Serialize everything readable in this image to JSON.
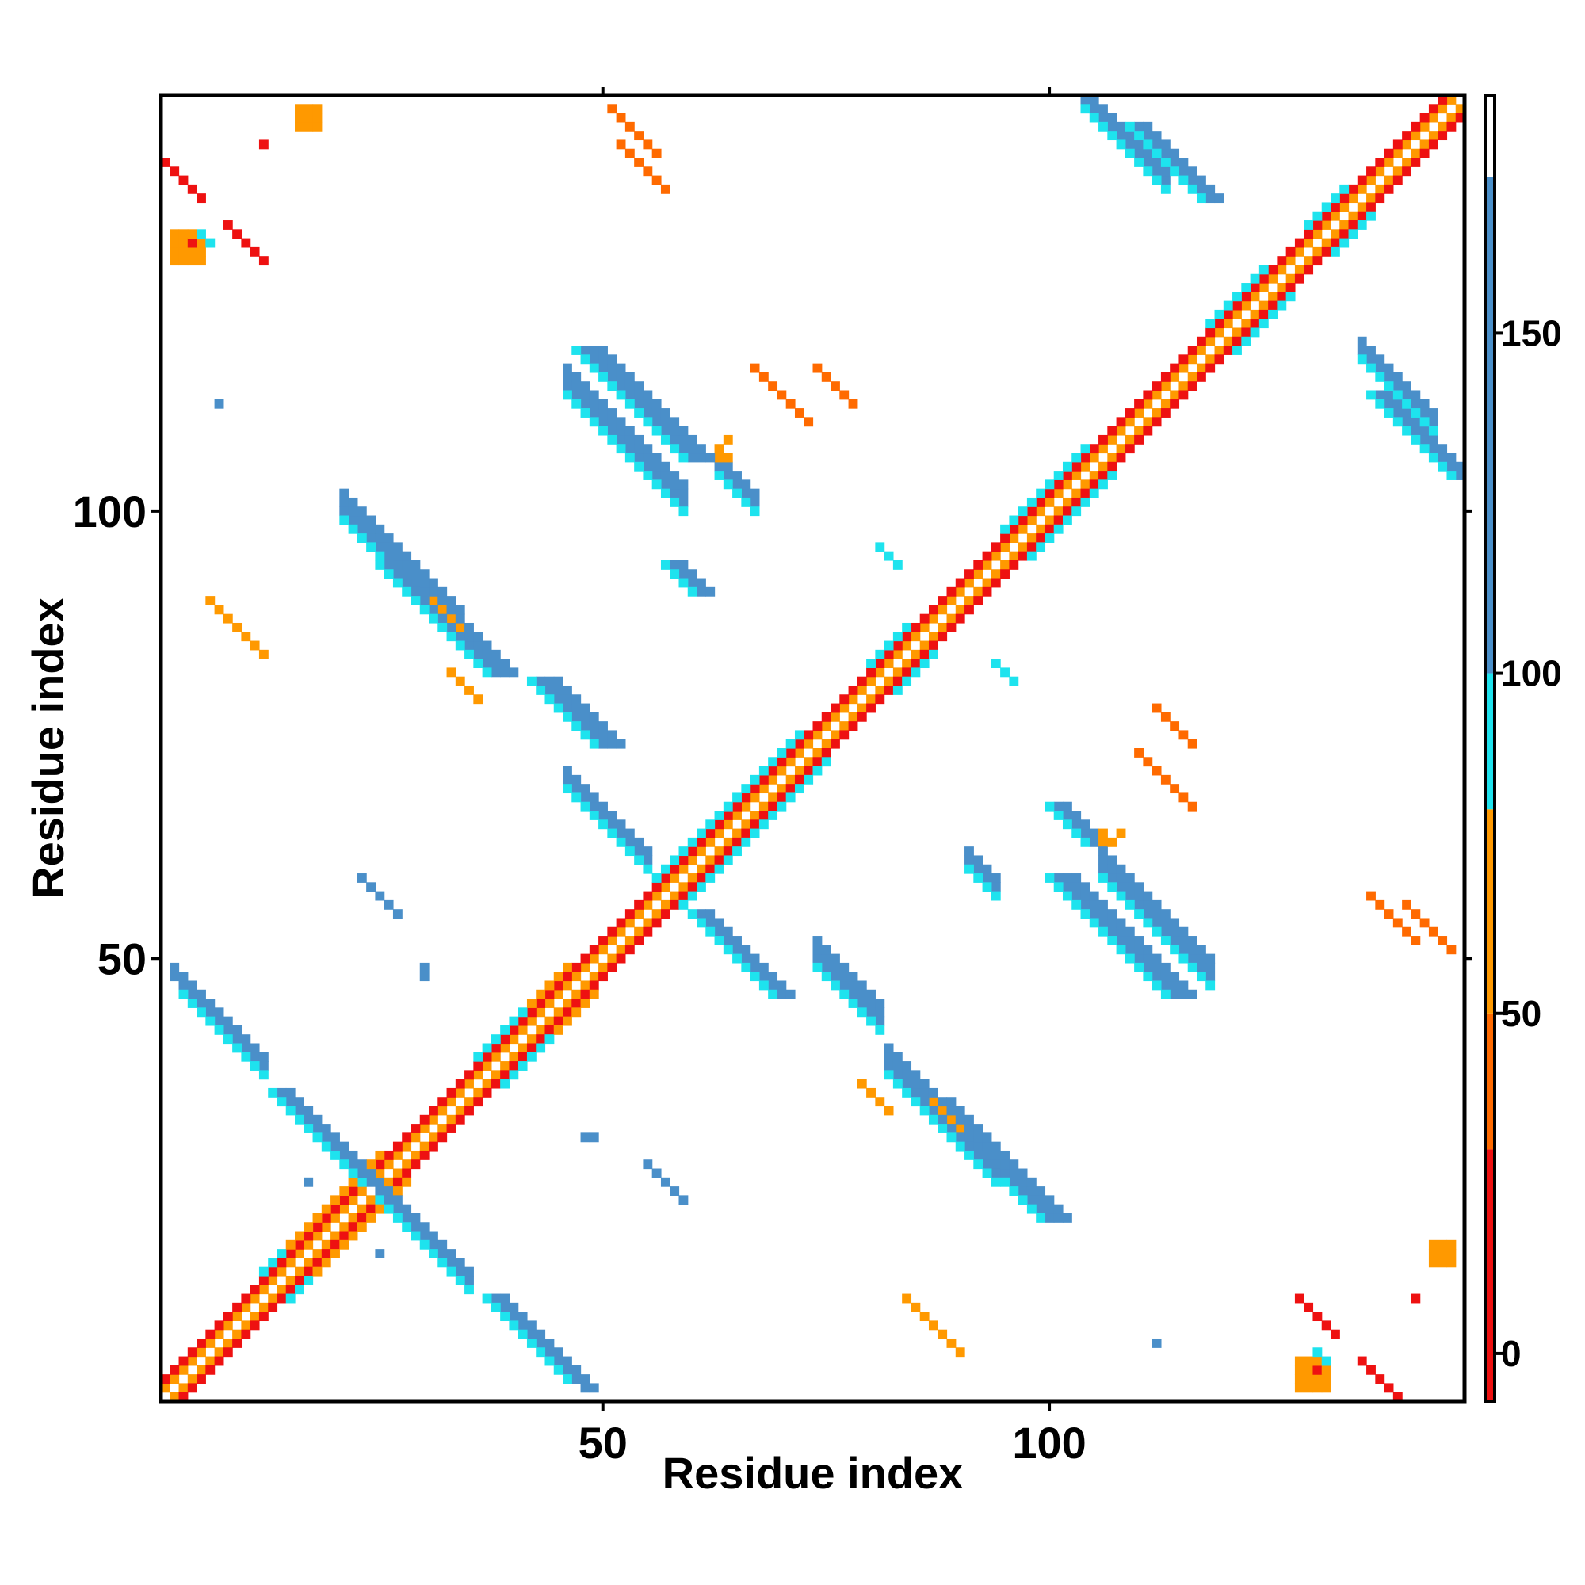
{
  "chart_data": {
    "type": "heatmap",
    "title": "",
    "xlabel": "Residue index",
    "ylabel": "Residue index",
    "xlim": [
      1,
      146
    ],
    "ylim": [
      1,
      146
    ],
    "x_ticks": [
      50,
      100
    ],
    "y_ticks": [
      50,
      100
    ],
    "grid": false,
    "legend": "colorbar-right",
    "colorbar": {
      "range": [
        -7,
        185
      ],
      "ticks": [
        0,
        50,
        100,
        150
      ],
      "bins": [
        {
          "from": -7,
          "to": 30,
          "color": "#ee1111"
        },
        {
          "from": 30,
          "to": 50,
          "color": "#ff6a00"
        },
        {
          "from": 50,
          "to": 80,
          "color": "#ff9900"
        },
        {
          "from": 80,
          "to": 100,
          "color": "#1ee3ee"
        },
        {
          "from": 100,
          "to": 173,
          "color": "#4a8fc9"
        },
        {
          "from": 173,
          "to": 185,
          "color": "#ffffff"
        }
      ]
    },
    "cell_groups": [
      {
        "kind": "diag",
        "i0": 1,
        "i1": 146,
        "off": 0,
        "value": 182
      },
      {
        "kind": "diag",
        "i0": 1,
        "i1": 145,
        "off": 1,
        "value": 55
      },
      {
        "kind": "diag",
        "i0": 1,
        "i1": 144,
        "off": 2,
        "value": 10
      },
      {
        "kind": "diag",
        "i0": 12,
        "i1": 19,
        "off": 3,
        "value": 90
      },
      {
        "kind": "diag",
        "i0": 15,
        "i1": 25,
        "off": 3,
        "value": 60
      },
      {
        "kind": "diag",
        "i0": 36,
        "i1": 44,
        "off": 3,
        "value": 90
      },
      {
        "kind": "diag",
        "i0": 42,
        "i1": 46,
        "off": 3,
        "value": 60
      },
      {
        "kind": "diag",
        "i0": 56,
        "i1": 62,
        "off": 3,
        "value": 90
      },
      {
        "kind": "diag",
        "i0": 62,
        "i1": 72,
        "off": 3,
        "value": 90
      },
      {
        "kind": "diag",
        "i0": 80,
        "i1": 84,
        "off": 3,
        "value": 90
      },
      {
        "kind": "diag",
        "i0": 95,
        "i1": 104,
        "off": 3,
        "value": 90
      },
      {
        "kind": "diag",
        "i0": 118,
        "i1": 124,
        "off": 3,
        "value": 90
      },
      {
        "kind": "diag",
        "i0": 129,
        "i1": 133,
        "off": 3,
        "value": 90
      },
      {
        "kind": "anti",
        "sum": 50,
        "i0": 2,
        "i1": 12,
        "width": 2,
        "value": 140
      },
      {
        "kind": "anti",
        "sum": 49,
        "i0": 3,
        "i1": 12,
        "width": 1,
        "value": 92
      },
      {
        "kind": "anti",
        "sum": 49,
        "i0": 25,
        "i1": 35,
        "width": 2,
        "value": 140
      },
      {
        "kind": "anti",
        "sum": 48,
        "i0": 25,
        "i1": 35,
        "width": 1,
        "value": 92
      },
      {
        "kind": "anti",
        "sum": 121,
        "i0": 21,
        "i1": 34,
        "width": 3,
        "value": 140
      },
      {
        "kind": "anti",
        "sum": 120,
        "i0": 21,
        "i1": 34,
        "width": 1,
        "value": 92
      },
      {
        "kind": "anti",
        "sum": 116,
        "i0": 46,
        "i1": 55,
        "width": 2,
        "value": 140
      },
      {
        "kind": "anti",
        "sum": 115,
        "i0": 46,
        "i1": 55,
        "width": 1,
        "value": 92
      },
      {
        "kind": "anti",
        "sum": 160,
        "i0": 46,
        "i1": 59,
        "width": 3,
        "value": 140
      },
      {
        "kind": "anti",
        "sum": 159,
        "i0": 46,
        "i1": 59,
        "width": 1,
        "value": 92
      },
      {
        "kind": "anti",
        "sum": 168,
        "i0": 63,
        "i1": 67,
        "width": 2,
        "value": 140
      },
      {
        "kind": "anti",
        "sum": 167,
        "i0": 63,
        "i1": 67,
        "width": 1,
        "value": 92
      },
      {
        "kind": "anti",
        "sum": 124,
        "i0": 74,
        "i1": 81,
        "width": 3,
        "value": 140
      },
      {
        "kind": "anti",
        "sum": 123,
        "i0": 74,
        "i1": 81,
        "width": 1,
        "value": 92
      },
      {
        "kind": "anti",
        "sum": 120,
        "i0": 82,
        "i1": 94,
        "width": 3,
        "value": 140
      },
      {
        "kind": "anti",
        "sum": 119,
        "i0": 82,
        "i1": 94,
        "width": 1,
        "value": 92
      },
      {
        "kind": "anti",
        "sum": 152,
        "i0": 91,
        "i1": 94,
        "width": 2,
        "value": 140
      },
      {
        "kind": "anti",
        "sum": 151,
        "i0": 91,
        "i1": 94,
        "width": 1,
        "value": 92
      },
      {
        "kind": "anti",
        "sum": 166,
        "i0": 106,
        "i1": 118,
        "width": 3,
        "value": 140
      },
      {
        "kind": "anti",
        "sum": 165,
        "i0": 106,
        "i1": 118,
        "width": 1,
        "value": 92
      },
      {
        "kind": "anti",
        "sum": 250,
        "i0": 104,
        "i1": 113,
        "width": 2,
        "value": 140
      },
      {
        "kind": "anti",
        "sum": 249,
        "i0": 104,
        "i1": 113,
        "width": 1,
        "value": 92
      },
      {
        "kind": "anti",
        "sum": 253,
        "i0": 135,
        "i1": 143,
        "width": 2,
        "value": 140
      },
      {
        "kind": "anti",
        "sum": 252,
        "i0": 135,
        "i1": 143,
        "width": 1,
        "value": 92
      },
      {
        "kind": "anti",
        "sum": 82,
        "i0": 55,
        "i1": 59,
        "width": 1,
        "value": 140
      },
      {
        "kind": "anti",
        "sum": 177,
        "i0": 81,
        "i1": 83,
        "width": 1,
        "value": 92
      },
      {
        "kind": "anti",
        "sum": 140,
        "i0": 8,
        "i1": 12,
        "width": 1,
        "value": 10
      },
      {
        "kind": "anti",
        "sum": 96,
        "i0": 6,
        "i1": 11,
        "width": 1,
        "value": 55
      },
      {
        "kind": "anti",
        "sum": 196,
        "i0": 51,
        "i1": 56,
        "width": 1,
        "value": 45
      },
      {
        "kind": "anti",
        "sum": 190,
        "i0": 74,
        "i1": 78,
        "width": 1,
        "value": 45
      },
      {
        "kind": "anti",
        "sum": 121,
        "i0": 31,
        "i1": 34,
        "width": 1,
        "value": 55
      },
      {
        "kind": "anti",
        "sum": 183,
        "i0": 110,
        "i1": 116,
        "width": 1,
        "value": 45
      },
      {
        "kind": "anti",
        "sum": 193,
        "i0": 136,
        "i1": 141,
        "width": 1,
        "value": 45
      },
      {
        "kind": "anti",
        "sum": 96,
        "i0": 84,
        "i1": 89,
        "width": 1,
        "value": 55
      },
      {
        "kind": "anti",
        "sum": 140,
        "i0": 135,
        "i1": 140,
        "width": 1,
        "value": 10
      },
      {
        "kind": "anti",
        "sum": 115,
        "i0": 79,
        "i1": 82,
        "width": 1,
        "value": 55
      },
      {
        "kind": "block",
        "x0": 2,
        "x1": 5,
        "y0": 128,
        "y1": 131,
        "value": 55
      },
      {
        "kind": "block",
        "x0": 16,
        "x1": 18,
        "y0": 143,
        "y1": 145,
        "value": 55
      },
      {
        "kind": "block",
        "x0": 128,
        "x1": 131,
        "y0": 2,
        "y1": 5,
        "value": 55
      },
      {
        "kind": "block",
        "x0": 143,
        "x1": 145,
        "y0": 16,
        "y1": 18,
        "value": 55
      },
      {
        "kind": "point",
        "x": 4,
        "y": 130,
        "value": 10
      },
      {
        "kind": "point",
        "x": 5,
        "y": 131,
        "value": 92
      },
      {
        "kind": "point",
        "x": 6,
        "y": 130,
        "value": 92
      },
      {
        "kind": "point",
        "x": 130,
        "y": 4,
        "value": 10
      },
      {
        "kind": "point",
        "x": 131,
        "y": 5,
        "value": 92
      },
      {
        "kind": "point",
        "x": 130,
        "y": 6,
        "value": 92
      },
      {
        "kind": "point",
        "x": 12,
        "y": 141,
        "value": 10
      },
      {
        "kind": "point",
        "x": 141,
        "y": 12,
        "value": 10
      },
      {
        "kind": "point",
        "x": 7,
        "y": 112,
        "value": 140
      },
      {
        "kind": "point",
        "x": 30,
        "y": 49,
        "value": 140
      },
      {
        "kind": "point",
        "x": 48,
        "y": 30,
        "value": 140
      },
      {
        "kind": "point",
        "x": 17,
        "y": 25,
        "value": 140
      },
      {
        "kind": "point",
        "x": 25,
        "y": 17,
        "value": 140
      },
      {
        "kind": "point",
        "x": 112,
        "y": 7,
        "value": 140
      },
      {
        "kind": "point",
        "x": 64,
        "y": 108,
        "value": 55
      },
      {
        "kind": "point",
        "x": 63,
        "y": 106,
        "value": 55
      },
      {
        "kind": "point",
        "x": 64,
        "y": 106,
        "value": 55
      },
      {
        "kind": "point",
        "x": 107,
        "y": 63,
        "value": 55
      },
      {
        "kind": "point",
        "x": 108,
        "y": 64,
        "value": 55
      }
    ]
  }
}
